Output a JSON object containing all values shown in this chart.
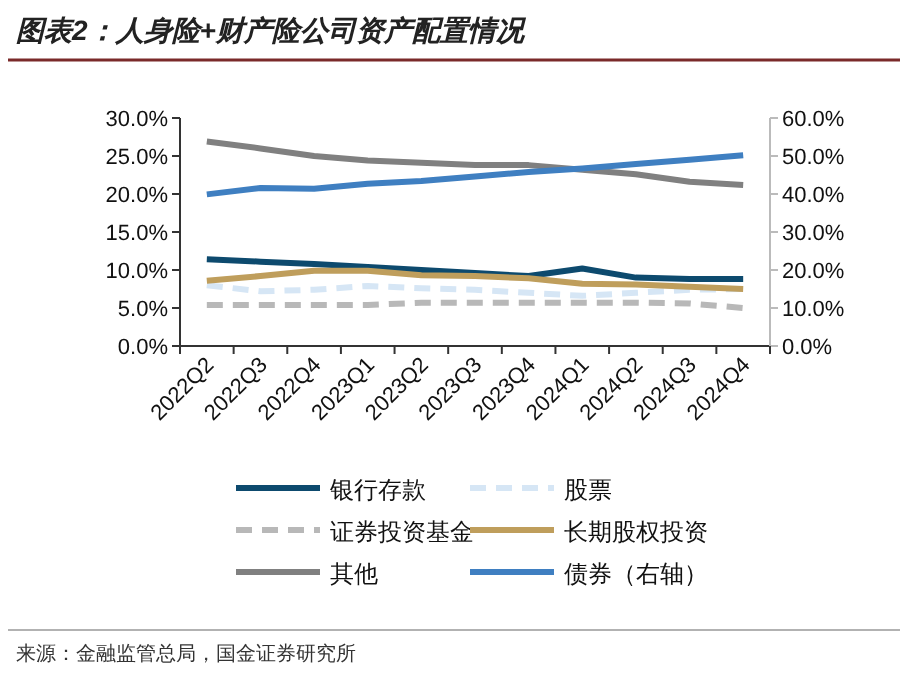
{
  "chart_data": {
    "type": "line",
    "title": "图表2：人身险+财产险公司资产配置情况",
    "categories": [
      "2022Q2",
      "2022Q3",
      "2022Q4",
      "2023Q1",
      "2023Q2",
      "2023Q3",
      "2023Q4",
      "2024Q1",
      "2024Q2",
      "2024Q3",
      "2024Q4"
    ],
    "series": [
      {
        "name": "银行存款",
        "color": "#0d4a6e",
        "values": [
          11.4,
          11.1,
          10.8,
          10.4,
          10.0,
          9.6,
          9.2,
          10.2,
          9.0,
          8.8,
          8.8
        ]
      },
      {
        "name": "股票",
        "color": "#d6e6f5",
        "line_style": "dashed",
        "values": [
          8.0,
          7.2,
          7.4,
          7.9,
          7.6,
          7.4,
          7.0,
          6.6,
          7.0,
          7.4,
          7.5
        ]
      },
      {
        "name": "证券投资基金",
        "color": "#b8b8b8",
        "line_style": "dashed",
        "values": [
          5.4,
          5.4,
          5.4,
          5.4,
          5.7,
          5.7,
          5.7,
          5.7,
          5.7,
          5.6,
          5.0
        ]
      },
      {
        "name": "长期股权投资",
        "color": "#bf9e5c",
        "values": [
          8.6,
          9.2,
          9.9,
          9.9,
          9.3,
          9.2,
          8.9,
          8.2,
          8.1,
          7.8,
          7.5
        ]
      },
      {
        "name": "其他",
        "color": "#808080",
        "values": [
          26.9,
          26.0,
          25.0,
          24.4,
          24.1,
          23.8,
          23.8,
          23.2,
          22.6,
          21.6,
          21.2
        ]
      },
      {
        "name": "债券（右轴）",
        "color": "#3f7fc1",
        "axis": "y2",
        "values": [
          39.9,
          41.6,
          41.4,
          42.7,
          43.4,
          44.6,
          45.8,
          46.7,
          47.9,
          49.0,
          50.2
        ]
      }
    ],
    "ylim": [
      0,
      30
    ],
    "yticks": [
      {
        "value": 0,
        "label": "0.0%"
      },
      {
        "value": 5,
        "label": "5.0%"
      },
      {
        "value": 10,
        "label": "10.0%"
      },
      {
        "value": 15,
        "label": "15.0%"
      },
      {
        "value": 20,
        "label": "20.0%"
      },
      {
        "value": 25,
        "label": "25.0%"
      },
      {
        "value": 30,
        "label": "30.0%"
      }
    ],
    "y2lim": [
      0,
      60
    ],
    "y2ticks": [
      {
        "value": 0,
        "label": "0.0%"
      },
      {
        "value": 10,
        "label": "10.0%"
      },
      {
        "value": 20,
        "label": "20.0%"
      },
      {
        "value": 30,
        "label": "30.0%"
      },
      {
        "value": 40,
        "label": "40.0%"
      },
      {
        "value": 50,
        "label": "50.0%"
      },
      {
        "value": 60,
        "label": "60.0%"
      }
    ],
    "legend": "bottom",
    "annotations": [
      "来源：金融监管总局，国金证券研究所"
    ]
  }
}
